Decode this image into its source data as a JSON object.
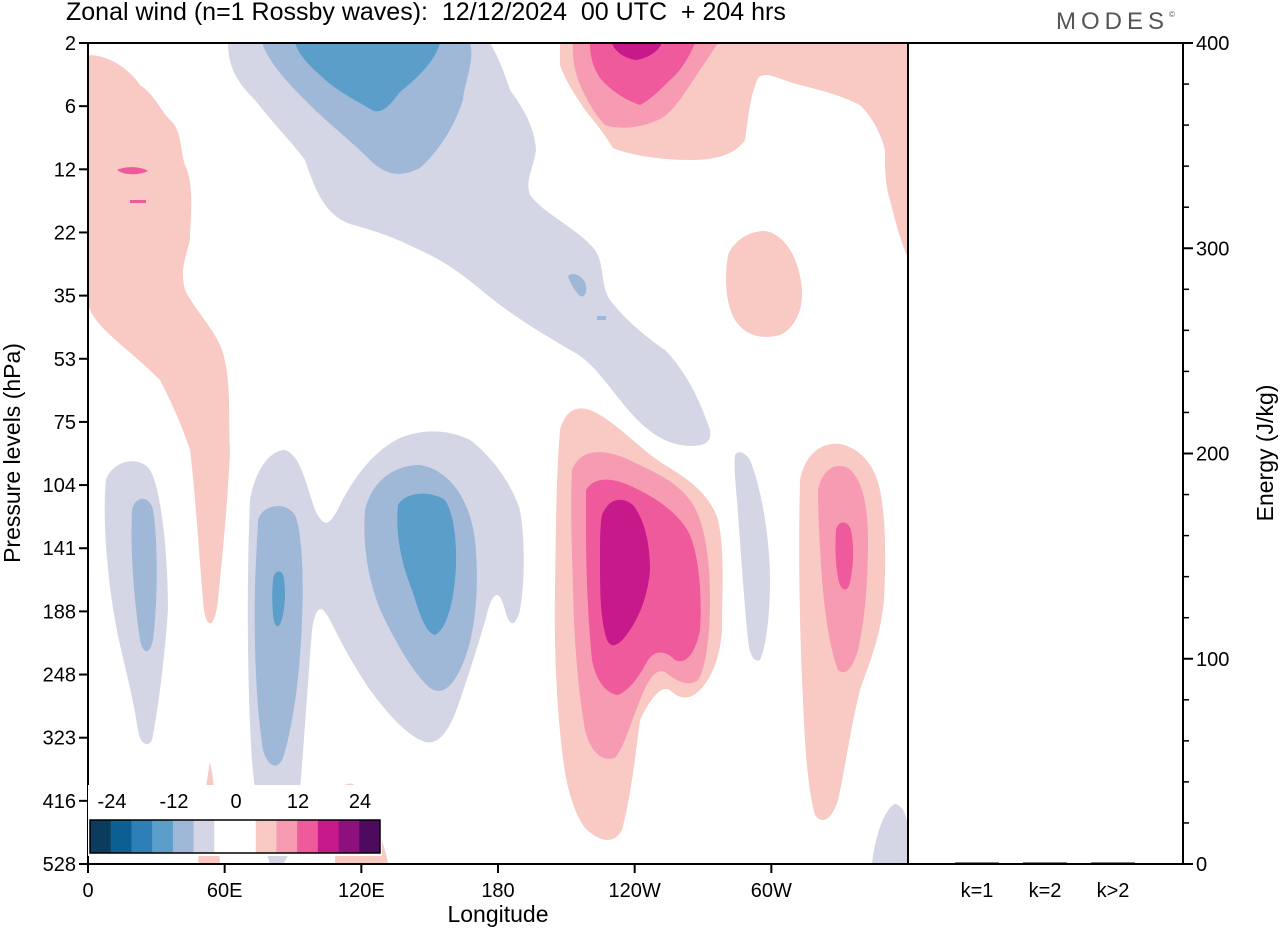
{
  "header": {
    "title": "Zonal wind (n=1 Rossby waves):  12/12/2024  00 UTC  + 204 hrs",
    "brand": "MODES",
    "brand_mark": "©"
  },
  "chart_data": [
    {
      "type": "heatmap",
      "title": "Zonal wind (n=1 Rossby waves):  12/12/2024  00 UTC  + 204 hrs",
      "xlabel": "Longitude",
      "ylabel": "Pressure levels (hPa)",
      "x_ticks": [
        "0",
        "60E",
        "120E",
        "180",
        "120W",
        "60W"
      ],
      "y_ticks": [
        "2",
        "6",
        "12",
        "22",
        "35",
        "53",
        "75",
        "104",
        "141",
        "188",
        "248",
        "323",
        "416",
        "528"
      ],
      "xlim_deg_east": [
        0,
        360
      ],
      "y_scale": "nonlinear (levels equally spaced)",
      "colorbar": {
        "labels": [
          "-24",
          "-12",
          "0",
          "12",
          "24"
        ],
        "levels": [
          -30,
          -24,
          -18,
          -12,
          -6,
          -3,
          3,
          6,
          12,
          18,
          24,
          30
        ],
        "colors": [
          "#0b3c5d",
          "#0b5f93",
          "#2d7fb8",
          "#5b9ec9",
          "#a0b8d8",
          "#d4d6e6",
          "#ffffff",
          "#ffffff",
          "#f9c9c4",
          "#f79bb3",
          "#ef5a9c",
          "#c71a8a",
          "#8e0f7e",
          "#4d0a5e"
        ]
      },
      "features": [
        {
          "sign": "positive",
          "max_level": 6,
          "lon_range": [
            0,
            60
          ],
          "p_range_hPa": [
            2,
            188
          ]
        },
        {
          "sign": "negative",
          "max_level": -12,
          "lon_range": [
            10,
            35
          ],
          "p_range_hPa": [
            104,
            323
          ]
        },
        {
          "sign": "negative",
          "max_level": -18,
          "lon_range": [
            70,
            100
          ],
          "p_range_hPa": [
            104,
            416
          ]
        },
        {
          "sign": "negative",
          "max_level": -18,
          "lon_range": [
            120,
            190
          ],
          "p_range_hPa": [
            75,
            323
          ]
        },
        {
          "sign": "negative",
          "max_level": -18,
          "lon_range": [
            60,
            190
          ],
          "p_range_hPa": [
            2,
            75
          ]
        },
        {
          "sign": "positive",
          "max_level": 24,
          "lon_range": [
            195,
            280
          ],
          "p_range_hPa": [
            75,
            416
          ]
        },
        {
          "sign": "positive",
          "max_level": 24,
          "lon_range": [
            200,
            360
          ],
          "p_range_hPa": [
            2,
            22
          ]
        },
        {
          "sign": "positive",
          "max_level": 6,
          "lon_range": [
            280,
            310
          ],
          "p_range_hPa": [
            22,
            53
          ]
        },
        {
          "sign": "positive",
          "max_level": 18,
          "lon_range": [
            300,
            345
          ],
          "p_range_hPa": [
            104,
            416
          ]
        },
        {
          "sign": "negative",
          "max_level": -6,
          "lon_range": [
            285,
            300
          ],
          "p_range_hPa": [
            104,
            248
          ]
        }
      ]
    },
    {
      "type": "bar",
      "ylabel": "Energy (J/kg)",
      "ylim": [
        0,
        400
      ],
      "y_ticks": [
        "0",
        "100",
        "200",
        "300",
        "400"
      ],
      "categories": [
        "k=1",
        "k=2",
        "k>2"
      ],
      "values": [
        0.5,
        0.3,
        0.4
      ]
    }
  ]
}
